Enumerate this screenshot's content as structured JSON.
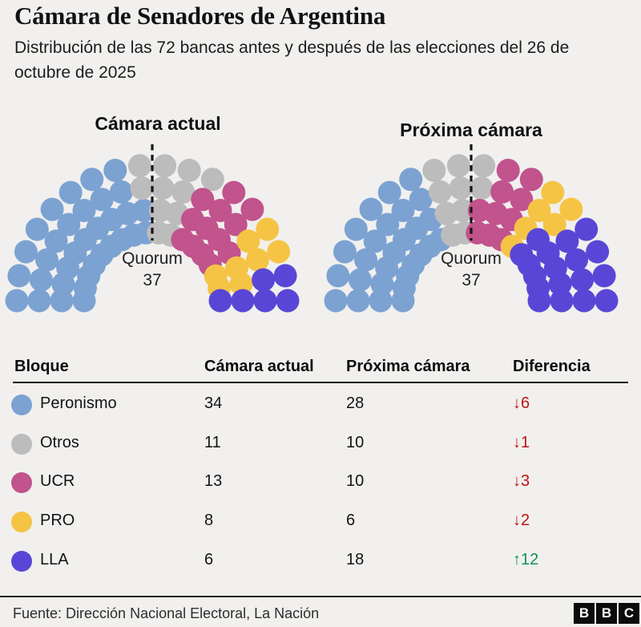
{
  "header": {
    "title": "Cámara de Senadores de Argentina",
    "subtitle": "Distribución de las 72 bancas antes y después de las elecciones del 26 de octubre de 2025"
  },
  "colors": {
    "background": "#f1f0ee",
    "peronismo": "#7ca2d2",
    "otros": "#bcbcbc",
    "ucr": "#c1538d",
    "pro": "#f5c445",
    "lla": "#5a46d6",
    "decrease": "#c01414",
    "increase": "#13914e",
    "text": "#1a1a1a"
  },
  "chart_data": [
    {
      "type": "parliament",
      "title": "Cámara actual",
      "total_seats": 72,
      "quorum_label": "Quorum",
      "quorum_value": "37",
      "series": [
        {
          "name": "Peronismo",
          "value": 34,
          "color_key": "peronismo"
        },
        {
          "name": "Otros",
          "value": 11,
          "color_key": "otros"
        },
        {
          "name": "UCR",
          "value": 13,
          "color_key": "ucr"
        },
        {
          "name": "PRO",
          "value": 8,
          "color_key": "pro"
        },
        {
          "name": "LLA",
          "value": 6,
          "color_key": "lla"
        }
      ],
      "layout": {
        "spokes": 18,
        "seats_per_spoke": 4,
        "radii": [
          85,
          113,
          141,
          169
        ],
        "dot_radius": 14.5
      }
    },
    {
      "type": "parliament",
      "title": "Próxima cámara",
      "total_seats": 72,
      "quorum_label": "Quorum",
      "quorum_value": "37",
      "series": [
        {
          "name": "Peronismo",
          "value": 28,
          "color_key": "peronismo"
        },
        {
          "name": "Otros",
          "value": 10,
          "color_key": "otros"
        },
        {
          "name": "UCR",
          "value": 10,
          "color_key": "ucr"
        },
        {
          "name": "PRO",
          "value": 6,
          "color_key": "pro"
        },
        {
          "name": "LLA",
          "value": 18,
          "color_key": "lla"
        }
      ],
      "layout": {
        "spokes": 18,
        "seats_per_spoke": 4,
        "radii": [
          85,
          113,
          141,
          169
        ],
        "dot_radius": 14.5
      }
    }
  ],
  "table": {
    "columns": [
      "Bloque",
      "Cámara actual",
      "Próxima cámara",
      "Diferencia"
    ],
    "rows": [
      {
        "bloque": "Peronismo",
        "color_key": "peronismo",
        "camara_actual": "34",
        "proxima_camara": "28",
        "diferencia": "↓6",
        "diff_color": "decrease"
      },
      {
        "bloque": "Otros",
        "color_key": "otros",
        "camara_actual": "11",
        "proxima_camara": "10",
        "diferencia": "↓1",
        "diff_color": "decrease"
      },
      {
        "bloque": "UCR",
        "color_key": "ucr",
        "camara_actual": "13",
        "proxima_camara": "10",
        "diferencia": "↓3",
        "diff_color": "decrease"
      },
      {
        "bloque": "PRO",
        "color_key": "pro",
        "camara_actual": "8",
        "proxima_camara": "6",
        "diferencia": "↓2",
        "diff_color": "decrease"
      },
      {
        "bloque": "LLA",
        "color_key": "lla",
        "camara_actual": "6",
        "proxima_camara": "18",
        "diferencia": "↑12",
        "diff_color": "increase"
      }
    ]
  },
  "footer": {
    "source": "Fuente: Dirección Nacional Electoral, La Nación",
    "logo_letters": [
      "B",
      "B",
      "C"
    ]
  }
}
